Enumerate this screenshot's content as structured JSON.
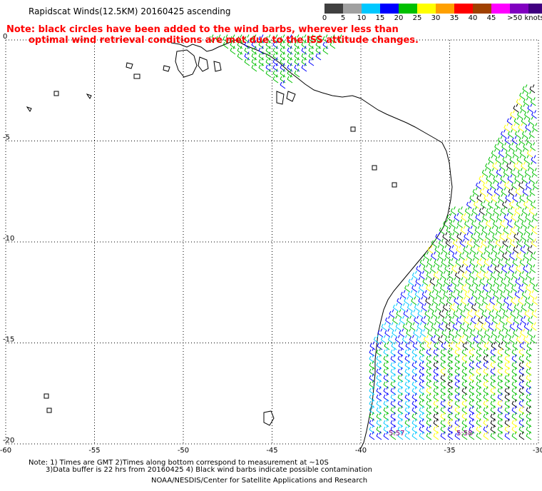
{
  "title": "Rapidscat Winds(12.5KM) 20160425 ascending",
  "note_line1": "Note: black circles have been added to the wind barbs, wherever less than",
  "note_line2": "optimal wind retrieval conditions are met due to the ISS attitude changes.",
  "colorbar": {
    "labels": [
      "0",
      "5",
      "10",
      "15",
      "20",
      "25",
      "30",
      "35",
      "40",
      "45",
      ">50 knots"
    ],
    "colors": [
      "#404040",
      "#a0a0a0",
      "#00c8ff",
      "#0000ff",
      "#00c000",
      "#ffff00",
      "#ffa000",
      "#ff0000",
      "#a04000",
      "#ff00ff",
      "#8000c0",
      "#400080"
    ]
  },
  "axes": {
    "x_ticks": [
      "-60",
      "-55",
      "-50",
      "-45",
      "-40",
      "-35",
      "-30"
    ],
    "y_ticks": [
      "0",
      "-5",
      "-10",
      "-15",
      "-20"
    ]
  },
  "time_labels": [
    "5:57",
    "5:58"
  ],
  "footer": {
    "line1": "Note: 1) Times are GMT 2)Times along bottom correspond to measurement at ~10S",
    "line2": "3)Data buffer is 22 hrs from 20160425 4) Black wind barbs indicate possible contamination",
    "credit": "NOAA/NESDIS/Center for Satellite Applications and Research"
  }
}
